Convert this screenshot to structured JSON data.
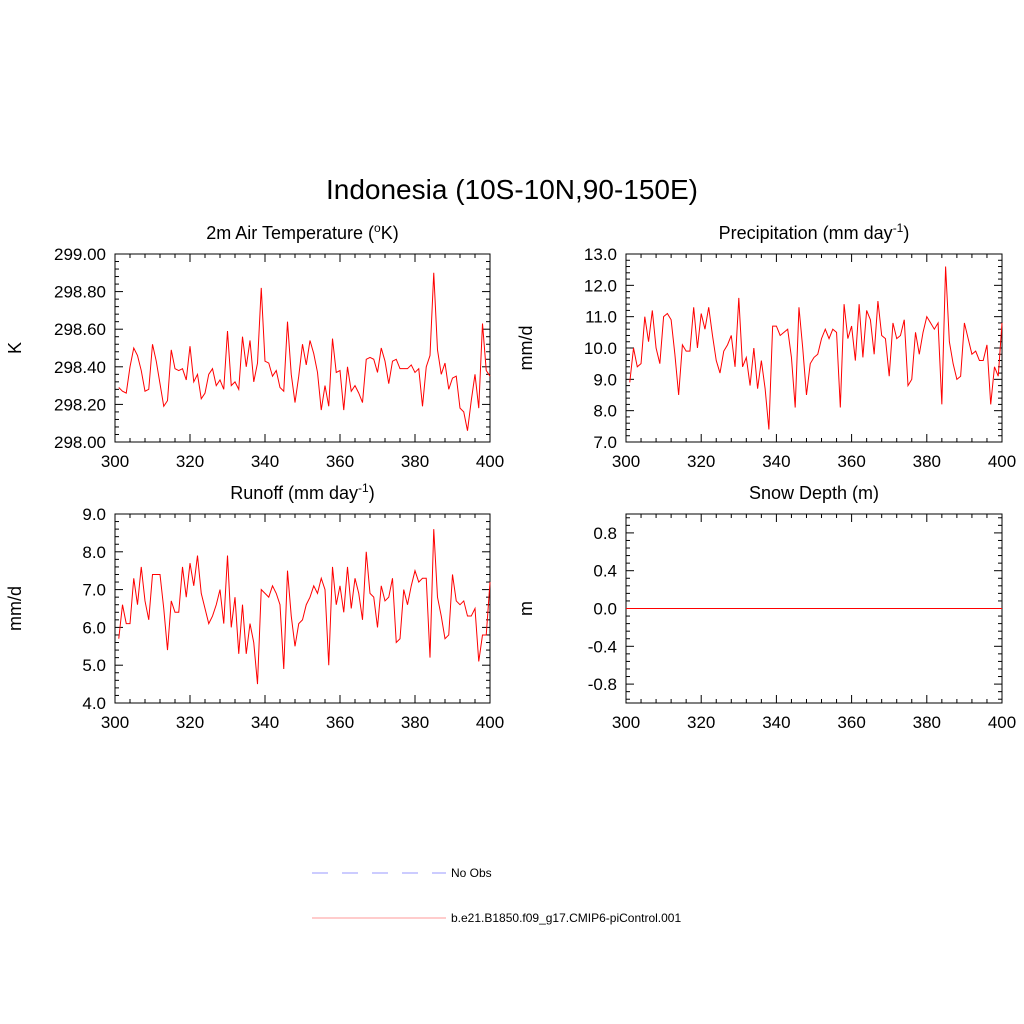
{
  "figure": {
    "title": "Indonesia (10S-10N,90-150E)"
  },
  "legend": {
    "entries": [
      {
        "label": "No Obs",
        "color": "#9999ff",
        "style": "dashed"
      },
      {
        "label": "b.e21.B1850.f09_g17.CMIP6-piControl.001",
        "color": "#ff9999",
        "style": "solid"
      }
    ]
  },
  "chart_data": [
    {
      "type": "line",
      "title": "2m Air Temperature (",
      "title_sup": "o",
      "title_post": "K)",
      "xlabel": "",
      "ylabel": "K",
      "xlim": [
        300,
        400
      ],
      "ylim": [
        298.0,
        299.0
      ],
      "xticks": [
        300,
        320,
        340,
        360,
        380,
        400
      ],
      "yticks": [
        298.0,
        298.2,
        298.4,
        298.6,
        298.8,
        299.0
      ],
      "ytick_labels": [
        "298.00",
        "298.20",
        "298.40",
        "298.60",
        "298.80",
        "299.00"
      ],
      "series": [
        {
          "name": "b.e21.B1850.f09_g17.CMIP6-piControl.001",
          "color": "#ff0000",
          "x_start": 301,
          "x_step": 1,
          "values": [
            298.29,
            298.27,
            298.26,
            298.4,
            298.5,
            298.46,
            298.38,
            298.27,
            298.28,
            298.52,
            298.43,
            298.31,
            298.19,
            298.22,
            298.49,
            298.39,
            298.38,
            298.39,
            298.33,
            298.51,
            298.32,
            298.36,
            298.23,
            298.26,
            298.36,
            298.39,
            298.3,
            298.33,
            298.28,
            298.59,
            298.3,
            298.32,
            298.28,
            298.56,
            298.4,
            298.54,
            298.32,
            298.42,
            298.82,
            298.43,
            298.42,
            298.35,
            298.38,
            298.29,
            298.27,
            298.64,
            298.36,
            298.21,
            298.35,
            298.52,
            298.41,
            298.54,
            298.47,
            298.37,
            298.17,
            298.3,
            298.19,
            298.55,
            298.37,
            298.38,
            298.17,
            298.4,
            298.27,
            298.3,
            298.26,
            298.21,
            298.44,
            298.45,
            298.44,
            298.37,
            298.5,
            298.43,
            298.31,
            298.43,
            298.44,
            298.39,
            298.39,
            298.39,
            298.41,
            298.37,
            298.39,
            298.19,
            298.4,
            298.46,
            298.9,
            298.49,
            298.36,
            298.42,
            298.28,
            298.34,
            298.35,
            298.18,
            298.16,
            298.06,
            298.22,
            298.36,
            298.18,
            298.63,
            298.38,
            298.35
          ]
        }
      ]
    },
    {
      "type": "line",
      "title": "Precipitation (mm day",
      "title_sup": "-1",
      "title_post": ")",
      "xlabel": "",
      "ylabel": "mm/d",
      "xlim": [
        300,
        400
      ],
      "ylim": [
        7.0,
        13.0
      ],
      "xticks": [
        300,
        320,
        340,
        360,
        380,
        400
      ],
      "yticks": [
        7,
        8,
        9,
        10,
        11,
        12,
        13
      ],
      "ytick_labels": [
        "7.0",
        "8.0",
        "9.0",
        "10.0",
        "11.0",
        "12.0",
        "13.0"
      ],
      "series": [
        {
          "name": "b.e21.B1850.f09_g17.CMIP6-piControl.001",
          "color": "#ff0000",
          "x_start": 301,
          "x_step": 1,
          "values": [
            8.9,
            10.0,
            9.4,
            9.5,
            11.0,
            10.2,
            11.2,
            10.0,
            9.5,
            11.0,
            11.1,
            10.9,
            9.8,
            8.5,
            10.1,
            9.9,
            9.9,
            11.3,
            10.0,
            11.1,
            10.6,
            11.3,
            10.4,
            9.6,
            9.2,
            9.9,
            10.1,
            10.4,
            9.4,
            11.6,
            9.4,
            9.7,
            8.8,
            10.0,
            8.7,
            9.6,
            8.7,
            7.4,
            10.7,
            10.7,
            10.4,
            10.5,
            10.6,
            9.7,
            8.1,
            11.3,
            10.0,
            8.5,
            9.5,
            9.7,
            9.8,
            10.3,
            10.6,
            10.3,
            10.6,
            10.5,
            8.1,
            11.4,
            10.3,
            10.7,
            9.6,
            11.4,
            9.7,
            11.2,
            10.9,
            9.8,
            11.5,
            10.4,
            10.3,
            9.1,
            10.8,
            10.3,
            10.4,
            10.9,
            8.8,
            9.0,
            10.5,
            9.8,
            10.5,
            11.0,
            10.8,
            10.6,
            10.8,
            8.2,
            12.6,
            10.2,
            9.5,
            9.0,
            9.1,
            10.8,
            10.3,
            9.8,
            9.9,
            9.6,
            9.6,
            10.1,
            8.2,
            9.4,
            9.1,
            10.8
          ]
        }
      ]
    },
    {
      "type": "line",
      "title": "Runoff (mm day",
      "title_sup": "-1",
      "title_post": ")",
      "xlabel": "",
      "ylabel": "mm/d",
      "xlim": [
        300,
        400
      ],
      "ylim": [
        4.0,
        9.0
      ],
      "xticks": [
        300,
        320,
        340,
        360,
        380,
        400
      ],
      "yticks": [
        4,
        5,
        6,
        7,
        8,
        9
      ],
      "ytick_labels": [
        "4.0",
        "5.0",
        "6.0",
        "7.0",
        "8.0",
        "9.0"
      ],
      "series": [
        {
          "name": "b.e21.B1850.f09_g17.CMIP6-piControl.001",
          "color": "#ff0000",
          "x_start": 301,
          "x_step": 1,
          "values": [
            5.7,
            6.6,
            6.1,
            6.1,
            7.3,
            6.6,
            7.6,
            6.7,
            6.2,
            7.4,
            7.4,
            7.4,
            6.5,
            5.4,
            6.7,
            6.4,
            6.4,
            7.6,
            6.8,
            7.7,
            7.1,
            7.9,
            6.9,
            6.5,
            6.1,
            6.3,
            6.6,
            7.0,
            6.1,
            7.9,
            6.0,
            6.8,
            5.3,
            6.6,
            5.3,
            6.1,
            5.6,
            4.5,
            7.0,
            6.9,
            6.8,
            7.1,
            6.9,
            6.6,
            4.9,
            7.5,
            6.3,
            5.5,
            6.1,
            6.2,
            6.6,
            6.8,
            7.1,
            6.9,
            7.3,
            7.0,
            5.0,
            7.6,
            6.6,
            7.1,
            6.4,
            7.6,
            6.5,
            7.3,
            6.9,
            6.2,
            8.0,
            6.9,
            6.8,
            6.0,
            7.1,
            6.7,
            6.8,
            7.3,
            5.6,
            5.7,
            7.0,
            6.6,
            7.1,
            7.5,
            7.2,
            7.3,
            7.3,
            5.2,
            8.6,
            6.8,
            6.3,
            5.7,
            5.8,
            7.4,
            6.7,
            6.6,
            6.7,
            6.3,
            6.3,
            6.5,
            5.1,
            5.8,
            5.8,
            7.2
          ]
        }
      ]
    },
    {
      "type": "line",
      "title": "Snow Depth (m)",
      "title_sup": "",
      "title_post": "",
      "xlabel": "",
      "ylabel": "m",
      "xlim": [
        300,
        400
      ],
      "ylim": [
        -1.0,
        1.0
      ],
      "xticks": [
        300,
        320,
        340,
        360,
        380,
        400
      ],
      "yticks": [
        -0.8,
        -0.4,
        0.0,
        0.4,
        0.8
      ],
      "ytick_labels": [
        "-0.8",
        "-0.4",
        "0.0",
        "0.4",
        "0.8"
      ],
      "series": [
        {
          "name": "b.e21.B1850.f09_g17.CMIP6-piControl.001",
          "color": "#ff0000",
          "x_start": 301,
          "x_step": 1,
          "values": [
            0,
            0,
            0,
            0,
            0,
            0,
            0,
            0,
            0,
            0,
            0,
            0,
            0,
            0,
            0,
            0,
            0,
            0,
            0,
            0,
            0,
            0,
            0,
            0,
            0,
            0,
            0,
            0,
            0,
            0,
            0,
            0,
            0,
            0,
            0,
            0,
            0,
            0,
            0,
            0,
            0,
            0,
            0,
            0,
            0,
            0,
            0,
            0,
            0,
            0,
            0,
            0,
            0,
            0,
            0,
            0,
            0,
            0,
            0,
            0,
            0,
            0,
            0,
            0,
            0,
            0,
            0,
            0,
            0,
            0,
            0,
            0,
            0,
            0,
            0,
            0,
            0,
            0,
            0,
            0,
            0,
            0,
            0,
            0,
            0,
            0,
            0,
            0,
            0,
            0,
            0,
            0,
            0,
            0,
            0,
            0,
            0,
            0,
            0,
            0
          ]
        }
      ]
    }
  ]
}
